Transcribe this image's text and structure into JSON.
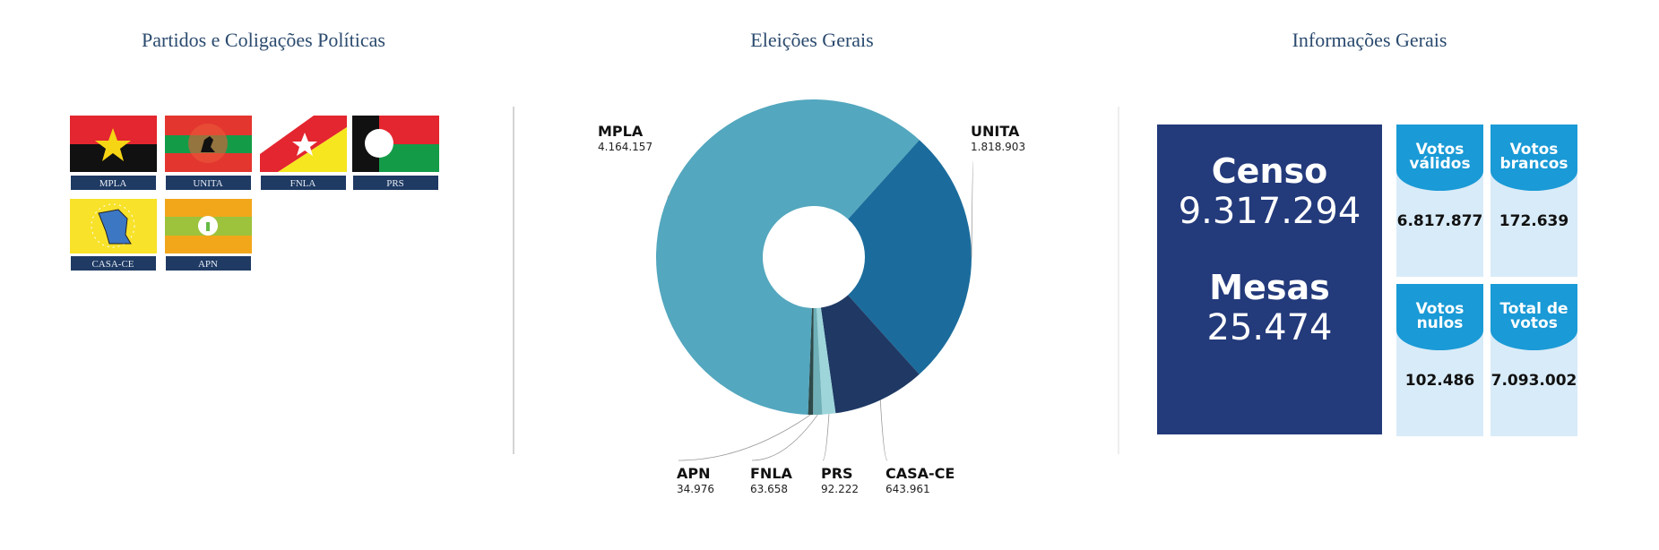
{
  "parties": {
    "title": "Partidos e Coligações Políticas",
    "flags": [
      "MPLA",
      "UNITA",
      "FNLA",
      "PRS",
      "CASA-CE",
      "APN"
    ]
  },
  "chart_data": {
    "type": "pie",
    "title": "Eleições Gerais",
    "categories": [
      "UNITA",
      "CASA-CE",
      "PRS",
      "FNLA",
      "APN",
      "MPLA"
    ],
    "values": [
      1818903,
      643961,
      92222,
      63658,
      34976,
      4164157
    ],
    "value_labels": [
      "1.818.903",
      "643.961",
      "92.222",
      "63.658",
      "34.976",
      "4.164.157"
    ],
    "colors": [
      "#1b6c9c",
      "#1f3964",
      "#9dd5da",
      "#6fb0b8",
      "#2e4a4a",
      "#53a7be"
    ]
  },
  "info": {
    "title": "Informações Gerais",
    "censo": {
      "label": "Censo",
      "value": "9.317.294"
    },
    "mesas": {
      "label": "Mesas",
      "value": "25.474"
    },
    "cards": [
      {
        "label": "Votos válidos",
        "value": "6.817.877"
      },
      {
        "label": "Votos brancos",
        "value": "172.639"
      },
      {
        "label": "Votos nulos",
        "value": "102.486"
      },
      {
        "label": "Total de votos",
        "value": "7.093.002"
      }
    ]
  }
}
